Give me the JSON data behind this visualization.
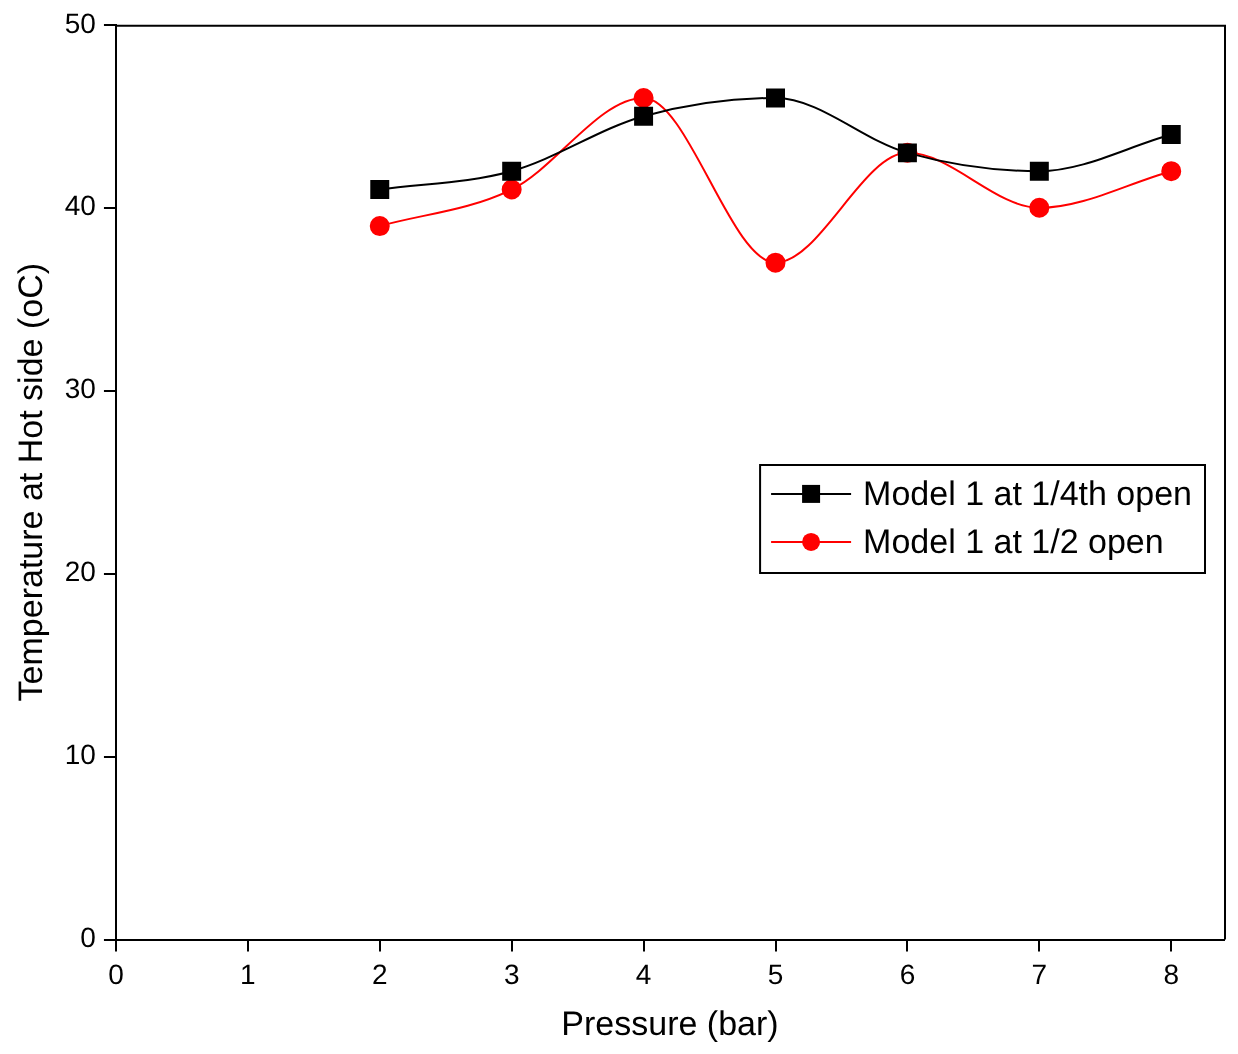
{
  "chart_data": {
    "type": "line",
    "xlabel": "Pressure (bar)",
    "ylabel": "Temperature at Hot side (oC)",
    "x": [
      2,
      3,
      4,
      5,
      6,
      7,
      8
    ],
    "series": [
      {
        "name": "Model 1 at 1/4th open",
        "color": "#000000",
        "marker": "square",
        "values": [
          41,
          42,
          45,
          46,
          43,
          42,
          44
        ]
      },
      {
        "name": "Model 1 at 1/2 open",
        "color": "#ff0000",
        "marker": "circle",
        "values": [
          39,
          41,
          46,
          37,
          43,
          40,
          42
        ]
      }
    ],
    "xlim": [
      0,
      8.4
    ],
    "xticks": [
      0,
      1,
      2,
      3,
      4,
      5,
      6,
      7,
      8
    ],
    "ylim": [
      0,
      50
    ],
    "yticks": [
      0,
      10,
      20,
      30,
      40,
      50
    ],
    "grid": false,
    "legend": "right"
  }
}
